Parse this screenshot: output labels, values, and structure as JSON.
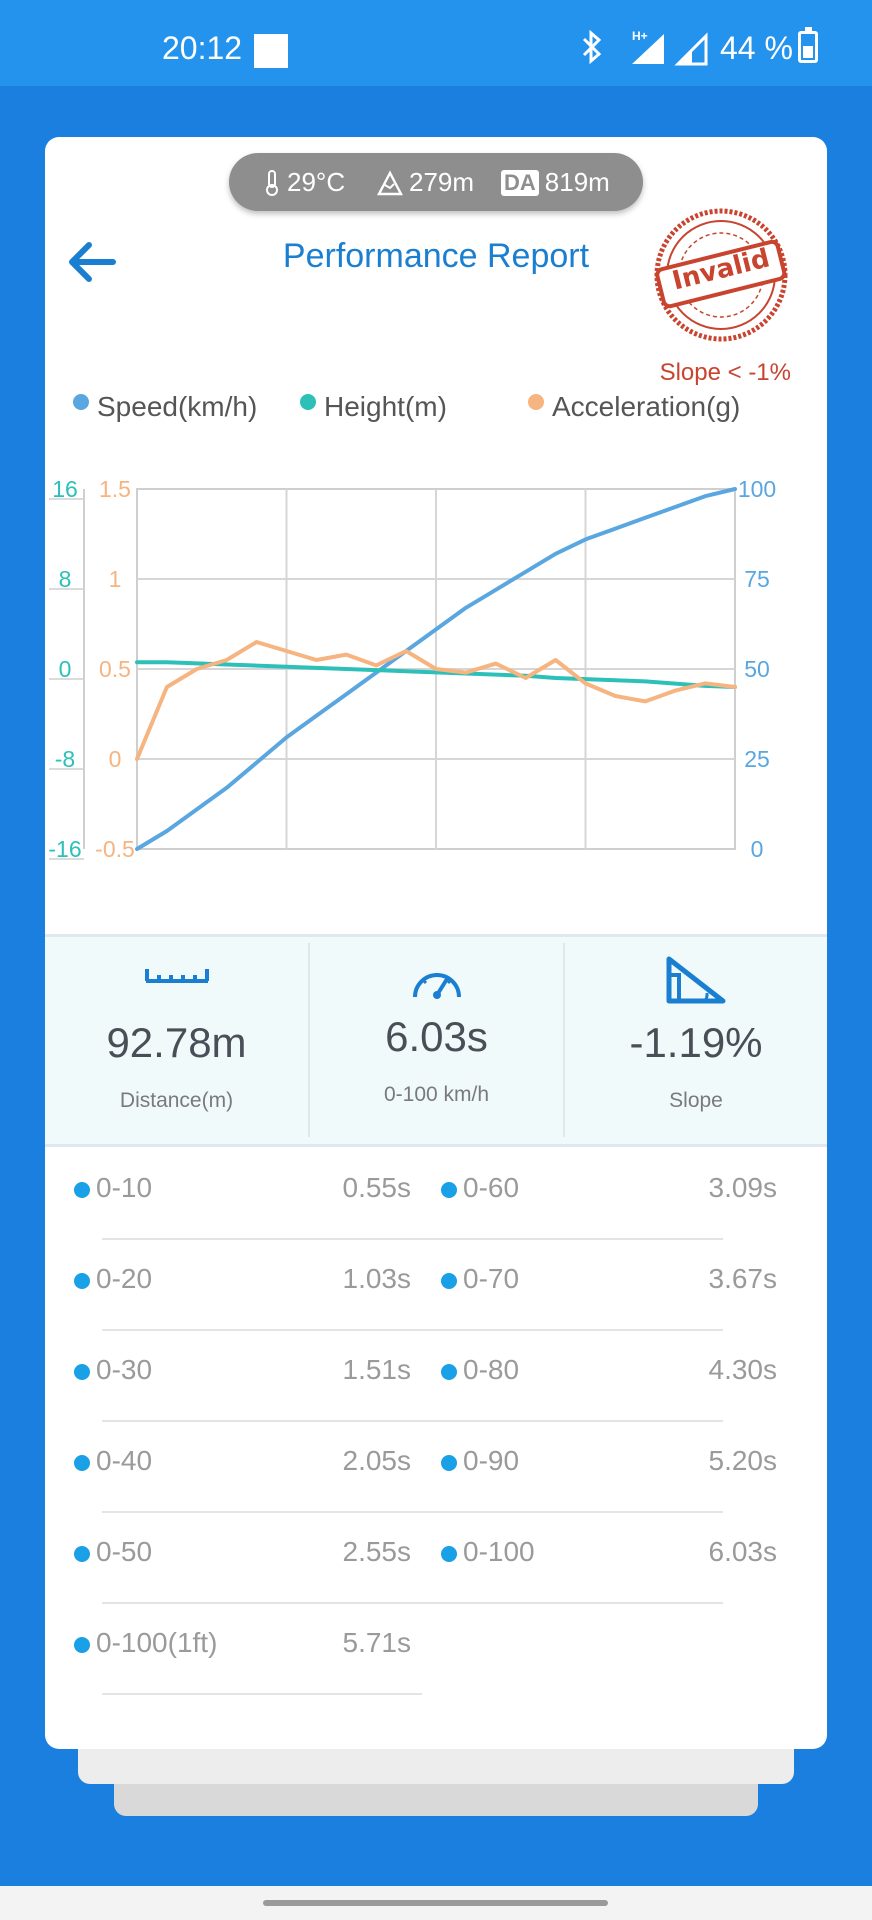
{
  "status_bar": {
    "time": "20:12",
    "network": "H+",
    "battery": "44 %",
    "icons": [
      "notification-square-icon",
      "bluetooth-icon",
      "signal-h-plus-icon",
      "signal-icon",
      "battery-icon"
    ]
  },
  "environment": {
    "temperature": "29°C",
    "altitude": "279m",
    "da_label": "DA",
    "density_altitude": "819m"
  },
  "header": {
    "title": "Performance Report",
    "stamp_text": "Invalid",
    "slope_note": "Slope < -1%"
  },
  "legend": {
    "speed": "Speed(km/h)",
    "height": "Height(m)",
    "acceleration": "Acceleration(g)"
  },
  "colors": {
    "speed": "#5aa6e0",
    "height": "#2cc0b8",
    "acceleration": "#f5b480",
    "accent": "#1a7fd0",
    "stamp": "#c8442f"
  },
  "chart_data": {
    "type": "line",
    "x": [
      0,
      0.05,
      0.1,
      0.15,
      0.2,
      0.25,
      0.3,
      0.35,
      0.4,
      0.45,
      0.5,
      0.55,
      0.6,
      0.65,
      0.7,
      0.75,
      0.8,
      0.85,
      0.9,
      0.95,
      1.0
    ],
    "xlim": [
      0,
      1
    ],
    "grid": true,
    "legend_position": "top",
    "axes": {
      "height_ticks": [
        "16",
        "8",
        "0",
        "-8",
        "-16"
      ],
      "height_range": [
        -16,
        16
      ],
      "acceleration_ticks": [
        "1.5",
        "1",
        "0.5",
        "0",
        "-0.5"
      ],
      "acceleration_range": [
        -0.5,
        1.5
      ],
      "speed_ticks": [
        "100",
        "75",
        "50",
        "25",
        "0"
      ],
      "speed_range": [
        0,
        100
      ]
    },
    "series": [
      {
        "name": "Speed(km/h)",
        "axis": "right",
        "values": [
          0,
          5,
          11,
          17,
          24,
          31,
          37,
          43,
          49,
          55,
          61,
          67,
          72,
          77,
          82,
          86,
          89,
          92,
          95,
          98,
          100
        ]
      },
      {
        "name": "Height(m)",
        "axis": "left",
        "values": [
          0.6,
          0.6,
          0.5,
          0.4,
          0.3,
          0.2,
          0.1,
          0.0,
          -0.1,
          -0.2,
          -0.3,
          -0.4,
          -0.5,
          -0.6,
          -0.8,
          -0.9,
          -1.0,
          -1.1,
          -1.3,
          -1.5,
          -1.6
        ]
      },
      {
        "name": "Acceleration(g)",
        "axis": "left2",
        "values": [
          0.0,
          0.4,
          0.5,
          0.55,
          0.65,
          0.6,
          0.55,
          0.58,
          0.52,
          0.6,
          0.5,
          0.48,
          0.53,
          0.45,
          0.55,
          0.42,
          0.35,
          0.32,
          0.38,
          0.42,
          0.4
        ]
      }
    ]
  },
  "stats": [
    {
      "value": "92.78m",
      "label": "Distance(m)",
      "icon": "ruler-icon"
    },
    {
      "value": "6.03s",
      "label": "0-100 km/h",
      "icon": "speedometer-icon"
    },
    {
      "value": "-1.19%",
      "label": "Slope",
      "icon": "slope-icon"
    }
  ],
  "split_times": [
    {
      "label": "0-10",
      "time": "0.55s"
    },
    {
      "label": "0-20",
      "time": "1.03s"
    },
    {
      "label": "0-30",
      "time": "1.51s"
    },
    {
      "label": "0-40",
      "time": "2.05s"
    },
    {
      "label": "0-50",
      "time": "2.55s"
    },
    {
      "label": "0-100(1ft)",
      "time": "5.71s"
    },
    {
      "label": "0-60",
      "time": "3.09s"
    },
    {
      "label": "0-70",
      "time": "3.67s"
    },
    {
      "label": "0-80",
      "time": "4.30s"
    },
    {
      "label": "0-90",
      "time": "5.20s"
    },
    {
      "label": "0-100",
      "time": "6.03s"
    }
  ]
}
